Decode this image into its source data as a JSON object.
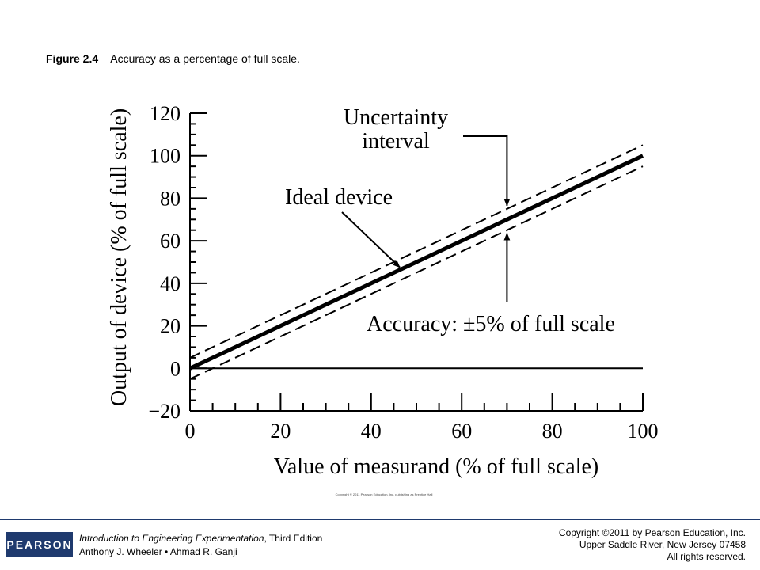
{
  "caption": {
    "label": "Figure 2.4",
    "text": "Accuracy as a percentage of full scale."
  },
  "chart_data": {
    "type": "line",
    "xlabel": "Value of measurand (% of full scale)",
    "ylabel": "Output of device (% of full scale)",
    "xlim": [
      0,
      100
    ],
    "ylim": [
      -20,
      120
    ],
    "x_ticks": [
      0,
      20,
      40,
      60,
      80,
      100
    ],
    "x_tick_labels": [
      "0",
      "20",
      "40",
      "60",
      "80",
      "100"
    ],
    "y_ticks": [
      -20,
      0,
      20,
      40,
      60,
      80,
      100,
      120
    ],
    "y_tick_labels": [
      "−20",
      "0",
      "20",
      "40",
      "60",
      "80",
      "100",
      "120"
    ],
    "grid": false,
    "series": [
      {
        "role": "ideal",
        "style": "solid-thick",
        "x": [
          0,
          100
        ],
        "y": [
          0,
          100
        ]
      },
      {
        "role": "upper-bound",
        "style": "dashed",
        "x": [
          0,
          100
        ],
        "y": [
          5,
          105
        ]
      },
      {
        "role": "lower-bound",
        "style": "dashed",
        "x": [
          0,
          100
        ],
        "y": [
          -5,
          95
        ]
      },
      {
        "role": "zero-line",
        "style": "solid-thin",
        "x": [
          0,
          100
        ],
        "y": [
          0,
          0
        ]
      }
    ],
    "annotations": [
      {
        "lines": [
          "Uncertainty",
          "interval"
        ]
      },
      {
        "lines": [
          "Ideal device"
        ]
      },
      {
        "lines": [
          "Accuracy: ±5% of full scale"
        ]
      }
    ],
    "credit": "Copyright © 2011 Pearson Education, Inc. publishing as Prentice Hall"
  },
  "footer": {
    "logo": "PEARSON",
    "book_title": "Introduction to Engineering Experimentation",
    "book_edition": ", Third Edition",
    "authors": "Anthony J. Wheeler • Ahmad R. Ganji",
    "copyright_line1": "Copyright ©2011 by Pearson Education, Inc.",
    "copyright_line2": "Upper Saddle River, New Jersey 07458",
    "copyright_line3": "All rights reserved."
  }
}
